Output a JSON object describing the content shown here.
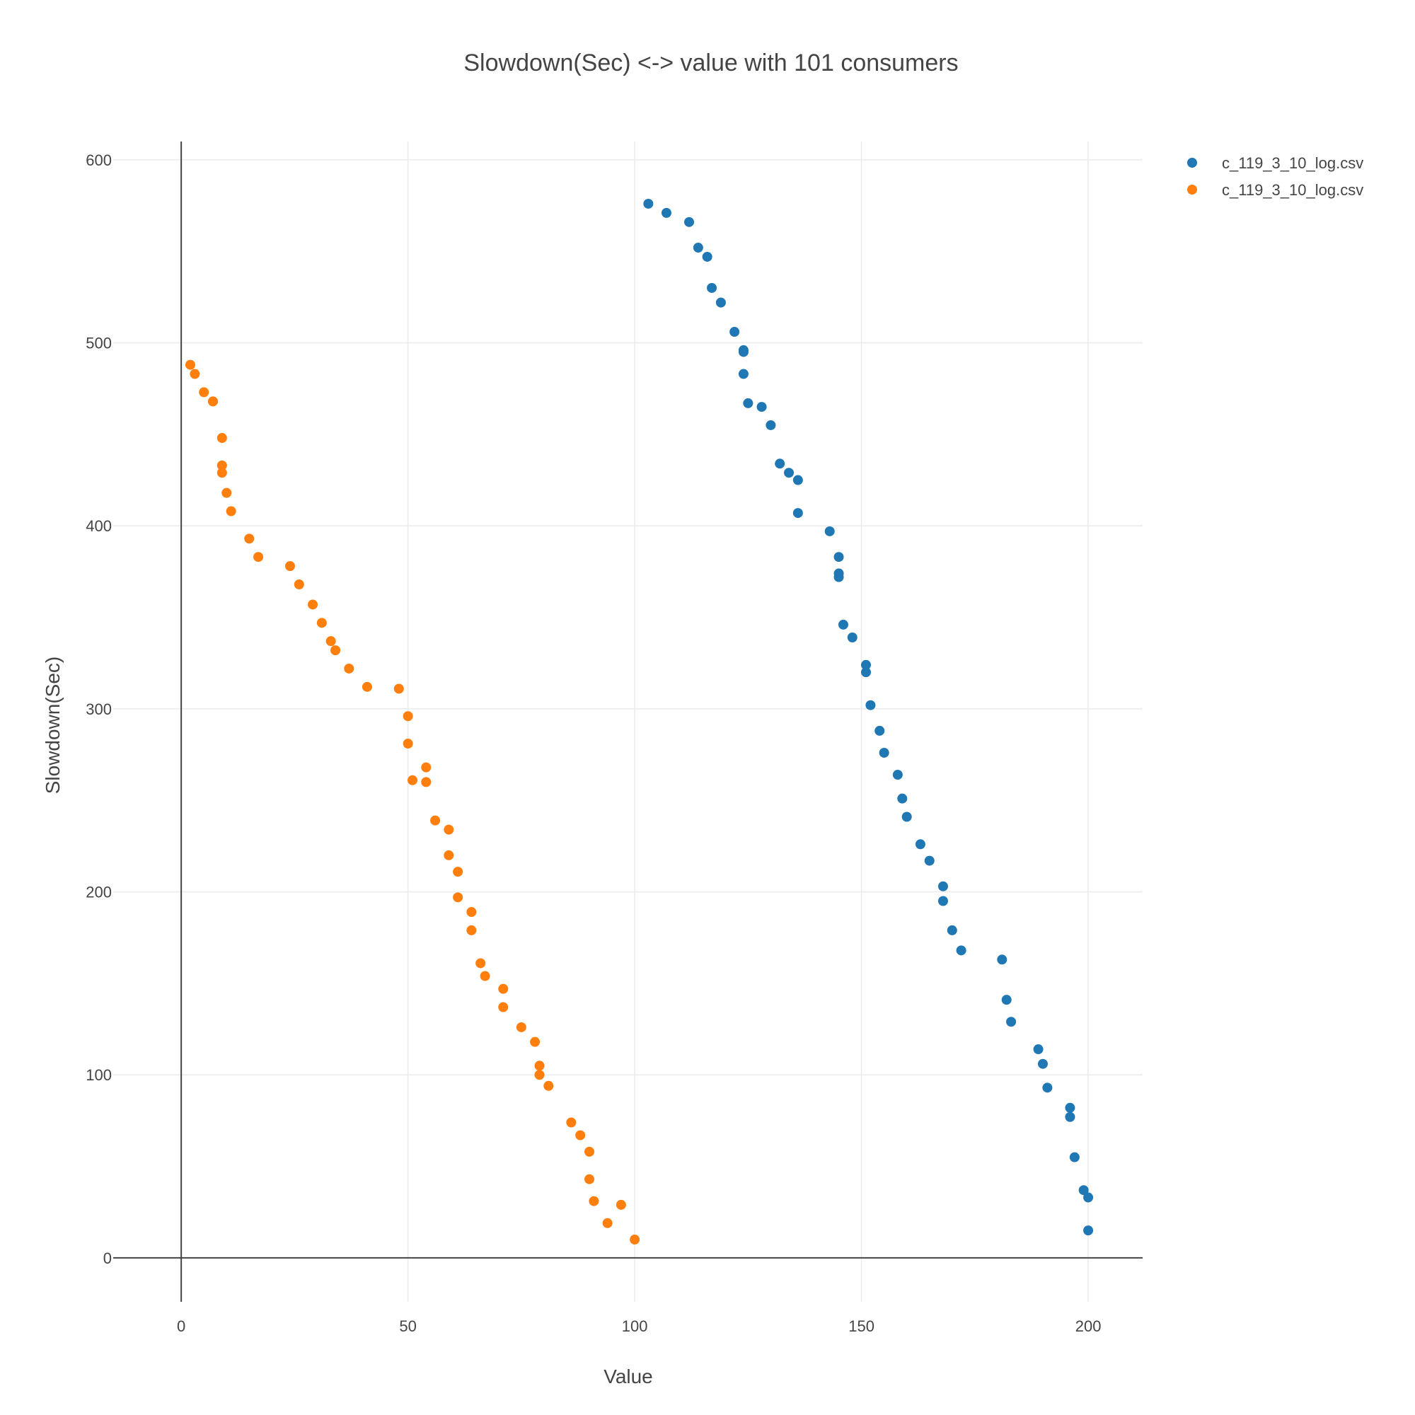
{
  "chart_data": {
    "type": "scatter",
    "title": "Slowdown(Sec) <-> value with 101 consumers",
    "xlabel": "Value",
    "ylabel": "Slowdown(Sec)",
    "xlim": [
      -15,
      212
    ],
    "ylim": [
      -24,
      610
    ],
    "xticks": [
      0,
      50,
      100,
      150,
      200
    ],
    "yticks": [
      0,
      100,
      200,
      300,
      400,
      500,
      600
    ],
    "grid": true,
    "legend_position": "top-right",
    "series": [
      {
        "name": "c_119_3_10_log.csv",
        "color": "#1f77b4",
        "x": [
          103,
          107,
          112,
          114,
          116,
          117,
          119,
          122,
          124,
          124,
          124,
          125,
          128,
          130,
          132,
          134,
          136,
          136,
          143,
          145,
          145,
          145,
          146,
          148,
          151,
          151,
          152,
          154,
          155,
          158,
          159,
          160,
          163,
          165,
          168,
          168,
          170,
          172,
          181,
          182,
          183,
          189,
          190,
          191,
          196,
          196,
          197,
          199,
          200,
          200
        ],
        "y": [
          576,
          571,
          566,
          552,
          547,
          530,
          522,
          506,
          496,
          495,
          483,
          467,
          465,
          455,
          434,
          429,
          425,
          407,
          397,
          383,
          374,
          372,
          346,
          339,
          324,
          320,
          302,
          288,
          276,
          264,
          251,
          241,
          226,
          217,
          203,
          195,
          179,
          168,
          163,
          141,
          129,
          114,
          106,
          93,
          82,
          77,
          55,
          37,
          33,
          15
        ]
      },
      {
        "name": "c_119_3_10_log.csv",
        "color": "#ff7f0e",
        "x": [
          2,
          3,
          5,
          7,
          7,
          9,
          9,
          9,
          10,
          11,
          15,
          17,
          24,
          26,
          29,
          31,
          33,
          34,
          37,
          41,
          48,
          50,
          50,
          51,
          54,
          54,
          56,
          59,
          59,
          61,
          61,
          64,
          64,
          66,
          67,
          71,
          71,
          75,
          78,
          79,
          79,
          81,
          86,
          88,
          90,
          90,
          91,
          94,
          97,
          100
        ],
        "y": [
          488,
          483,
          473,
          468,
          468,
          448,
          433,
          429,
          418,
          408,
          393,
          383,
          378,
          368,
          357,
          347,
          337,
          332,
          322,
          312,
          311,
          296,
          281,
          261,
          268,
          260,
          239,
          234,
          220,
          211,
          197,
          189,
          179,
          161,
          154,
          147,
          137,
          126,
          118,
          105,
          100,
          94,
          74,
          67,
          58,
          43,
          31,
          19,
          29,
          10
        ]
      }
    ]
  }
}
